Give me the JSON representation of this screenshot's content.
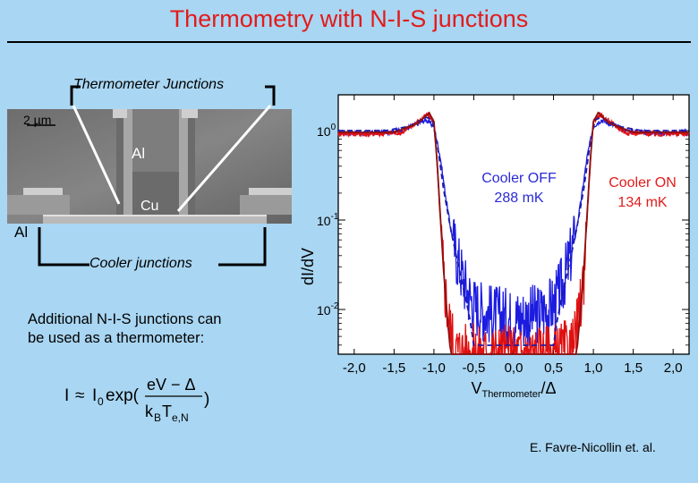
{
  "slide": {
    "title": "Thermometry with N-I-S junctions",
    "description_line1": "Additional N-I-S junctions can",
    "description_line2": "be used as a thermometer:",
    "credit": "E. Favre-Nicollin et. al."
  },
  "micrograph": {
    "thermometer_label": "Thermometer Junctions",
    "cooler_label": "Cooler junctions",
    "scale_bar": "2 µm",
    "al_top": "Al",
    "cu": "Cu",
    "al_left": "Al"
  },
  "formula": {
    "lhs": "I",
    "approx": "≈",
    "i0_base": "I",
    "i0_sub": "0",
    "exp": "exp(",
    "numerator": "eV − Δ",
    "denominator_kb": "k",
    "kb_sub": "B",
    "denominator_t": "T",
    "t_sub": "e,N",
    "close": ")"
  },
  "chart_data": {
    "type": "line",
    "xlim": [
      -2.2,
      2.2
    ],
    "ylim_log10": [
      -2.5,
      0.4
    ],
    "yscale": "log",
    "x_ticks": [
      "-2,0",
      "-1,5",
      "-1,0",
      "-0,5",
      "0,0",
      "0,5",
      "1,0",
      "1,5",
      "2,0"
    ],
    "x_tick_values": [
      -2.0,
      -1.5,
      -1.0,
      -0.5,
      0.0,
      0.5,
      1.0,
      1.5,
      2.0
    ],
    "y_ticks": [
      {
        "base": "10",
        "exp": "0",
        "value": 0
      },
      {
        "base": "10",
        "exp": "-1",
        "value": -1
      },
      {
        "base": "10",
        "exp": "-2",
        "value": -2
      }
    ],
    "xlabel_main": "V",
    "xlabel_sub": "Thermometer",
    "xlabel_tail": "/Δ",
    "ylabel": "dI/dV",
    "annotations": [
      {
        "text": "Cooler OFF",
        "color": "#2a2ad6"
      },
      {
        "text": "288 mK",
        "color": "#2a2ad6"
      },
      {
        "text": "Cooler ON",
        "color": "#e21b1b"
      },
      {
        "text": "134 mK",
        "color": "#e21b1b"
      }
    ],
    "series": [
      {
        "color": "#1c1ce0",
        "style": "noisy",
        "points": [
          [
            -2.2,
            -0.02
          ],
          [
            -1.8,
            -0.03
          ],
          [
            -1.4,
            0.0
          ],
          [
            -1.2,
            0.08
          ],
          [
            -1.1,
            0.12
          ],
          [
            -1.0,
            0.05
          ],
          [
            -0.92,
            -0.3
          ],
          [
            -0.85,
            -0.75
          ],
          [
            -0.78,
            -1.15
          ],
          [
            -0.7,
            -1.45
          ],
          [
            -0.6,
            -1.75
          ],
          [
            -0.5,
            -1.95
          ],
          [
            -0.3,
            -2.05
          ],
          [
            0.0,
            -2.1
          ],
          [
            0.3,
            -2.05
          ],
          [
            0.5,
            -1.95
          ],
          [
            0.6,
            -1.75
          ],
          [
            0.7,
            -1.45
          ],
          [
            0.78,
            -1.15
          ],
          [
            0.85,
            -0.75
          ],
          [
            0.92,
            -0.3
          ],
          [
            1.0,
            0.05
          ],
          [
            1.1,
            0.12
          ],
          [
            1.2,
            0.08
          ],
          [
            1.4,
            0.0
          ],
          [
            1.8,
            -0.03
          ],
          [
            2.2,
            -0.02
          ]
        ]
      },
      {
        "color": "#e01010",
        "style": "noisy",
        "points": [
          [
            -2.2,
            -0.03
          ],
          [
            -1.8,
            -0.04
          ],
          [
            -1.4,
            -0.02
          ],
          [
            -1.2,
            0.1
          ],
          [
            -1.08,
            0.18
          ],
          [
            -1.0,
            0.1
          ],
          [
            -0.96,
            -0.4
          ],
          [
            -0.92,
            -1.0
          ],
          [
            -0.88,
            -1.6
          ],
          [
            -0.82,
            -2.1
          ],
          [
            -0.74,
            -2.45
          ],
          [
            -0.5,
            -2.5
          ],
          [
            0.0,
            -2.5
          ],
          [
            0.5,
            -2.5
          ],
          [
            0.74,
            -2.45
          ],
          [
            0.82,
            -2.1
          ],
          [
            0.88,
            -1.6
          ],
          [
            0.92,
            -1.0
          ],
          [
            0.96,
            -0.4
          ],
          [
            1.0,
            0.1
          ],
          [
            1.08,
            0.18
          ],
          [
            1.2,
            0.1
          ],
          [
            1.4,
            -0.02
          ],
          [
            1.8,
            -0.04
          ],
          [
            2.2,
            -0.03
          ]
        ]
      },
      {
        "color": "#1c1ca8",
        "style": "dashed",
        "points": [
          [
            -2.2,
            0.0
          ],
          [
            -1.6,
            0.0
          ],
          [
            -1.3,
            0.05
          ],
          [
            -1.1,
            0.15
          ],
          [
            -1.02,
            0.12
          ],
          [
            -0.95,
            -0.2
          ],
          [
            -0.88,
            -0.65
          ],
          [
            -0.8,
            -1.05
          ],
          [
            -0.72,
            -1.4
          ],
          [
            -0.62,
            -1.8
          ],
          [
            -0.55,
            -2.1
          ],
          [
            -0.5,
            -2.4
          ],
          [
            0.5,
            -2.4
          ],
          [
            0.55,
            -2.1
          ],
          [
            0.62,
            -1.8
          ],
          [
            0.72,
            -1.4
          ],
          [
            0.8,
            -1.05
          ],
          [
            0.88,
            -0.65
          ],
          [
            0.95,
            -0.2
          ],
          [
            1.02,
            0.12
          ],
          [
            1.1,
            0.15
          ],
          [
            1.3,
            0.05
          ],
          [
            1.6,
            0.0
          ],
          [
            2.2,
            0.0
          ]
        ]
      },
      {
        "color": "#8b1010",
        "style": "solid",
        "points": [
          [
            -2.2,
            -0.02
          ],
          [
            -1.5,
            -0.02
          ],
          [
            -1.2,
            0.08
          ],
          [
            -1.06,
            0.2
          ],
          [
            -1.0,
            0.1
          ],
          [
            -0.96,
            -0.35
          ],
          [
            -0.92,
            -0.95
          ],
          [
            -0.88,
            -1.55
          ],
          [
            -0.84,
            -2.0
          ],
          [
            -0.8,
            -2.4
          ],
          [
            -0.78,
            -2.5
          ],
          [
            0.78,
            -2.5
          ],
          [
            0.8,
            -2.4
          ],
          [
            0.84,
            -2.0
          ],
          [
            0.88,
            -1.55
          ],
          [
            0.92,
            -0.95
          ],
          [
            0.96,
            -0.35
          ],
          [
            1.0,
            0.1
          ],
          [
            1.06,
            0.2
          ],
          [
            1.2,
            0.08
          ],
          [
            1.5,
            -0.02
          ],
          [
            2.2,
            -0.02
          ]
        ]
      }
    ]
  }
}
